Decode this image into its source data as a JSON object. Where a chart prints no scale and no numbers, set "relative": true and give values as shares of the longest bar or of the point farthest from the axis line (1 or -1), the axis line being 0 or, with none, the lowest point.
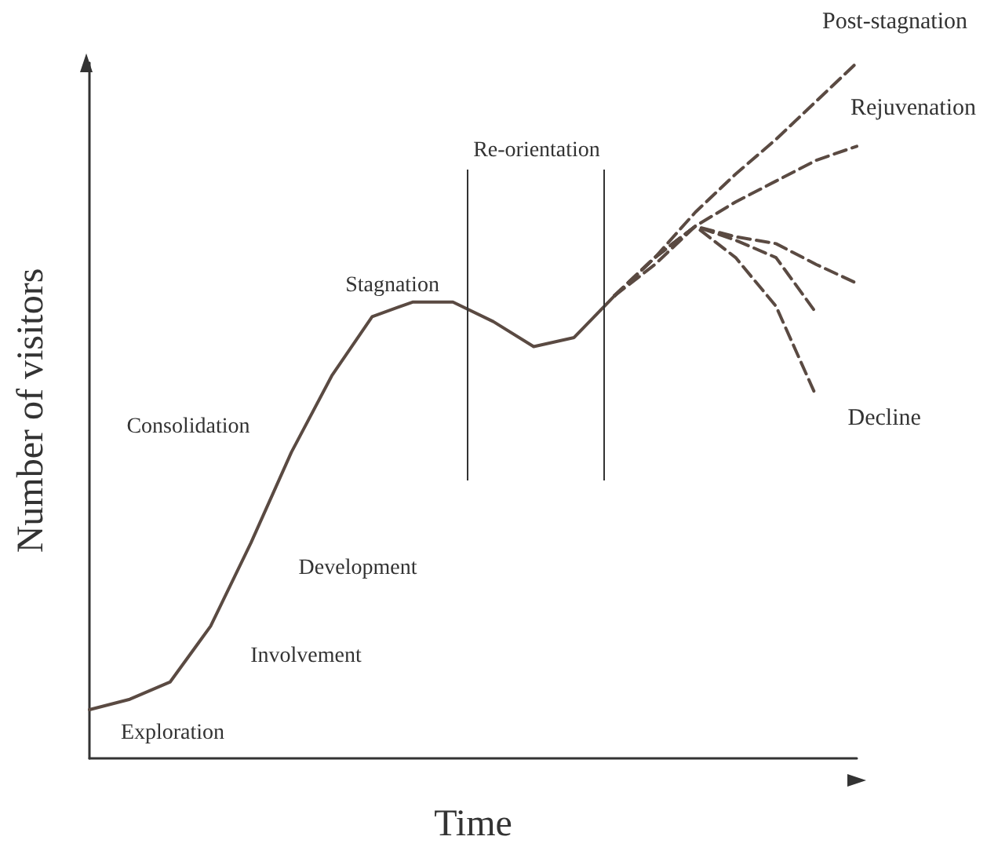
{
  "chart_data": {
    "type": "line",
    "relative": true,
    "xlabel": "Time",
    "ylabel": "Number of visitors",
    "grid": false,
    "legend": false,
    "marker": "none",
    "categories": [
      null,
      null,
      null,
      null,
      null,
      null,
      null,
      null,
      null,
      null,
      null,
      null,
      null,
      null,
      null,
      null,
      null,
      null,
      null,
      null
    ],
    "series": [
      {
        "color": "#5a4a42",
        "line_style": "solid",
        "values": [
          0.07,
          0.085,
          0.11,
          0.19,
          0.31,
          0.44,
          0.55,
          0.635,
          0.656,
          0.656,
          0.628,
          0.592,
          0.605,
          0.665,
          null,
          null,
          null,
          null,
          null,
          null
        ]
      },
      {
        "name": "Post-stagnation",
        "color": "#5a4a42",
        "line_style": "dashed",
        "values": [
          null,
          null,
          null,
          null,
          null,
          null,
          null,
          null,
          null,
          null,
          null,
          null,
          null,
          0.665,
          0.72,
          0.785,
          0.84,
          0.89,
          0.945,
          1
        ]
      },
      {
        "name": "Rejuvenation",
        "color": "#5a4a42",
        "line_style": "dashed",
        "values": [
          null,
          null,
          null,
          null,
          null,
          null,
          null,
          null,
          null,
          null,
          null,
          null,
          null,
          0.665,
          0.71,
          0.765,
          0.8,
          0.83,
          0.86,
          0.88
        ]
      },
      {
        "color": "#5a4a42",
        "line_style": "dashed",
        "values": [
          null,
          null,
          null,
          null,
          null,
          null,
          null,
          null,
          null,
          null,
          null,
          null,
          null,
          0.665,
          0.72,
          0.765,
          0.75,
          0.74,
          0.71,
          0.683
        ]
      },
      {
        "color": "#5a4a42",
        "line_style": "dashed",
        "values": [
          null,
          null,
          null,
          null,
          null,
          null,
          null,
          null,
          null,
          null,
          null,
          null,
          null,
          0.665,
          0.72,
          0.765,
          0.745,
          0.72,
          0.64,
          null
        ]
      },
      {
        "name": "Decline",
        "color": "#5a4a42",
        "line_style": "dashed",
        "values": [
          null,
          null,
          null,
          null,
          null,
          null,
          null,
          null,
          null,
          null,
          null,
          null,
          null,
          0.665,
          0.72,
          0.765,
          0.72,
          0.65,
          0.52,
          null
        ]
      }
    ],
    "annotations": [
      "Exploration",
      "Involvement",
      "Development",
      "Consolidation",
      "Stagnation",
      "Re-orientation"
    ]
  }
}
